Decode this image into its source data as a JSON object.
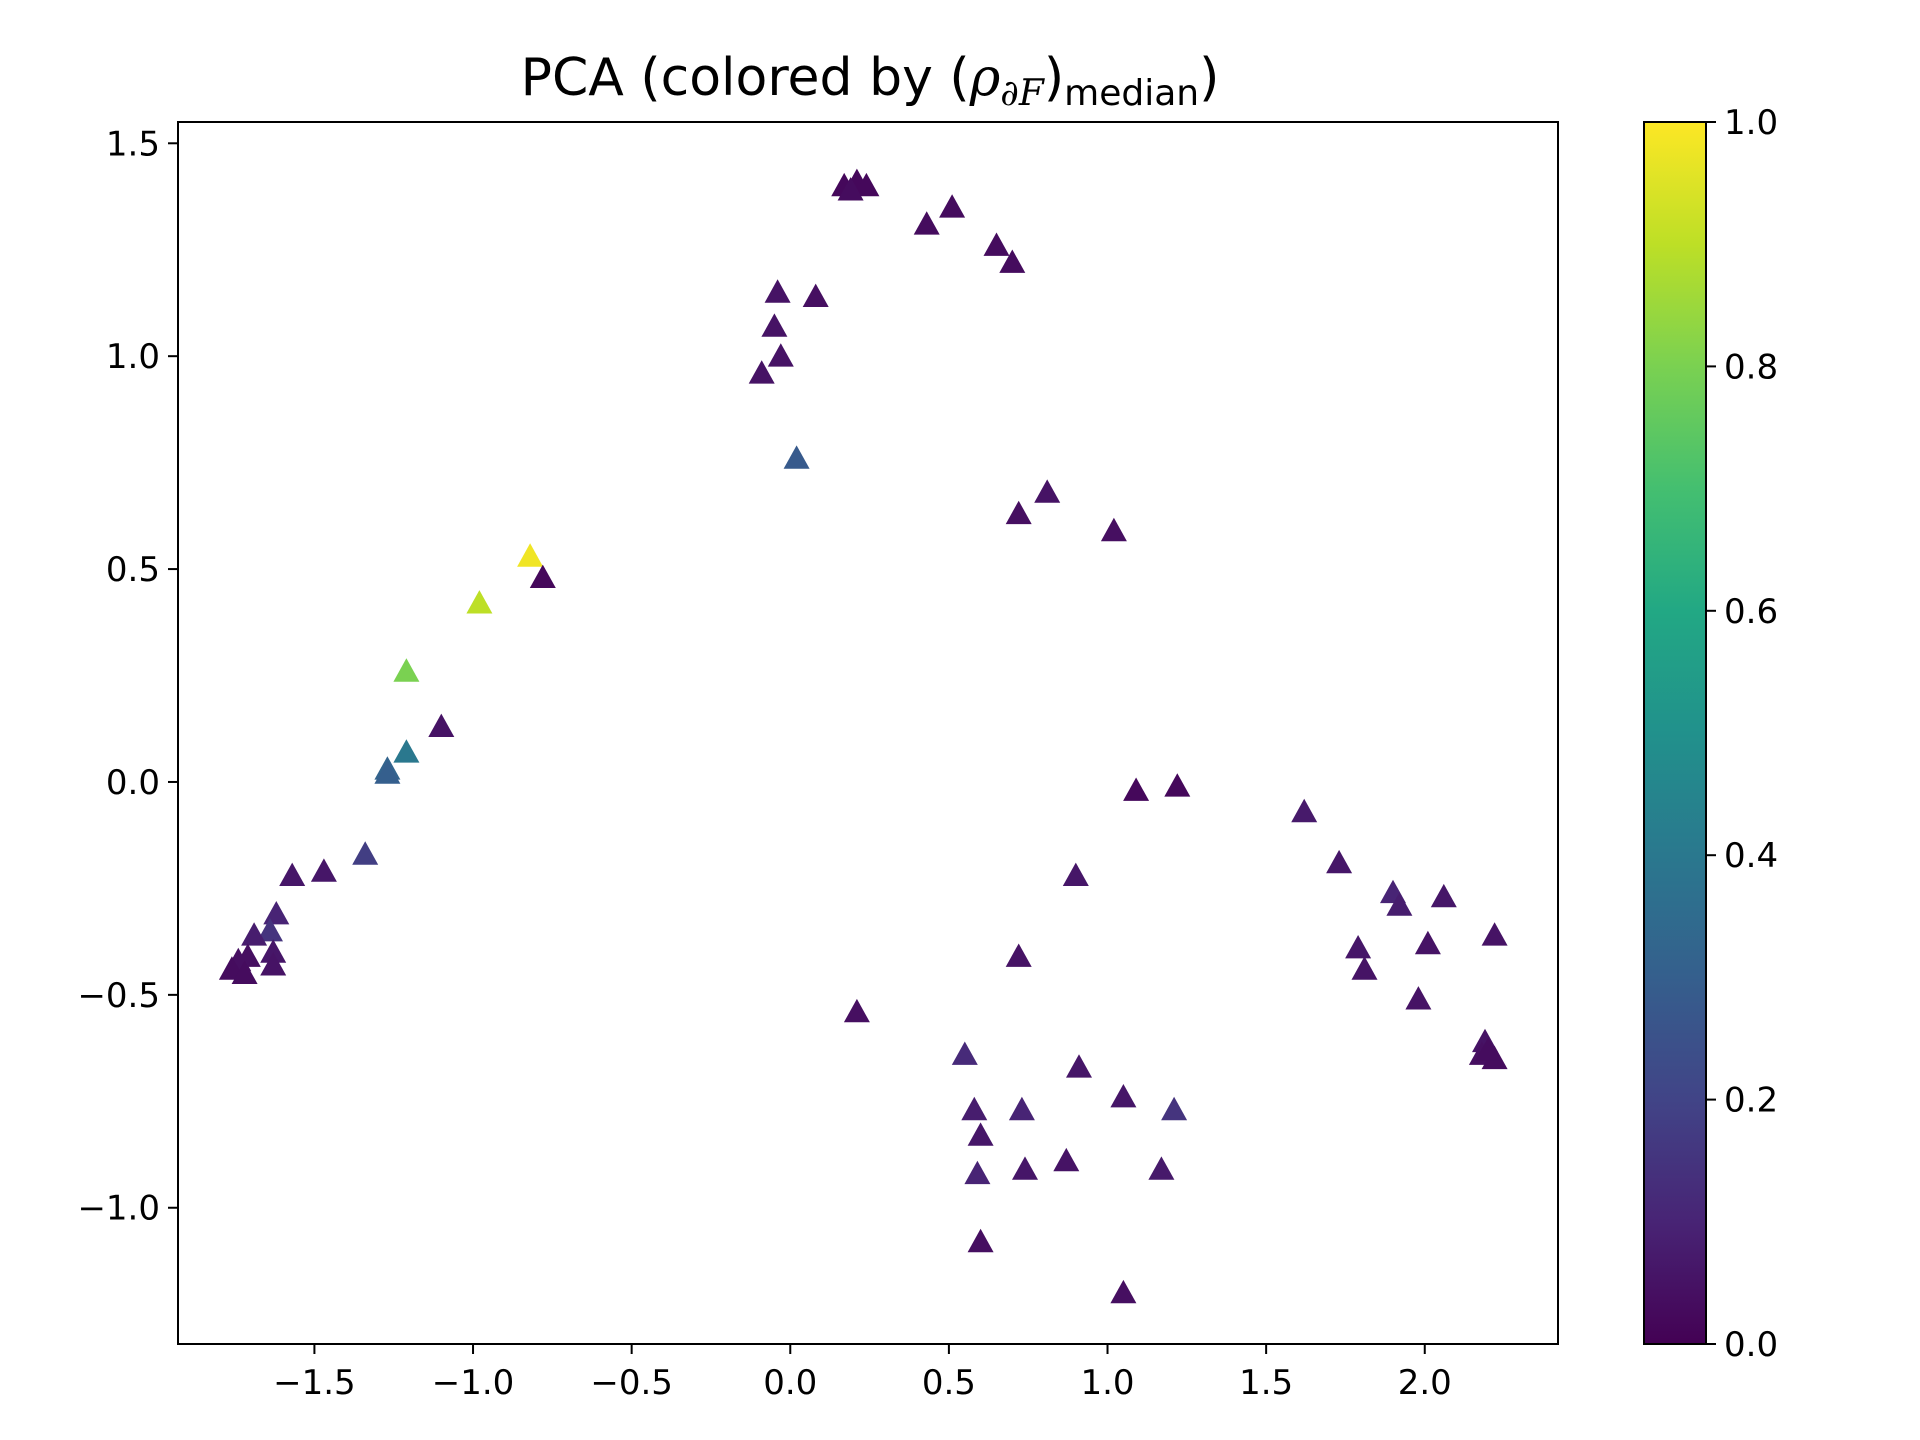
{
  "chart_data": {
    "type": "scatter",
    "title": {
      "prefix": "PCA (colored by (",
      "rho": "ρ",
      "sub": "∂F",
      "close": ")",
      "median": "median",
      "suffix": ")"
    },
    "xlabel": "",
    "ylabel": "",
    "xlim": [
      -1.93,
      2.42
    ],
    "ylim": [
      -1.32,
      1.55
    ],
    "xticks": [
      -1.5,
      -1.0,
      -0.5,
      0.0,
      0.5,
      1.0,
      1.5,
      2.0
    ],
    "xtick_labels": [
      "−1.5",
      "−1.0",
      "−0.5",
      "0.0",
      "0.5",
      "1.0",
      "1.5",
      "2.0"
    ],
    "yticks": [
      -1.0,
      -0.5,
      0.0,
      0.5,
      1.0,
      1.5
    ],
    "ytick_labels": [
      "−1.0",
      "−0.5",
      "0.0",
      "0.5",
      "1.0",
      "1.5"
    ],
    "marker": "triangle",
    "colormap": "viridis",
    "colorbar": {
      "range": [
        0.0,
        1.0
      ],
      "ticks": [
        0.0,
        0.2,
        0.4,
        0.6,
        0.8,
        1.0
      ],
      "tick_labels": [
        "0.0",
        "0.2",
        "0.4",
        "0.6",
        "0.8",
        "1.0"
      ]
    },
    "grid": false,
    "points": [
      {
        "x": 0.17,
        "y": 1.4,
        "c": 0.02
      },
      {
        "x": 0.21,
        "y": 1.41,
        "c": 0.02
      },
      {
        "x": 0.24,
        "y": 1.4,
        "c": 0.02
      },
      {
        "x": 0.19,
        "y": 1.39,
        "c": 0.03
      },
      {
        "x": 0.51,
        "y": 1.35,
        "c": 0.03
      },
      {
        "x": 0.43,
        "y": 1.31,
        "c": 0.03
      },
      {
        "x": 0.65,
        "y": 1.26,
        "c": 0.03
      },
      {
        "x": 0.7,
        "y": 1.22,
        "c": 0.03
      },
      {
        "x": -0.04,
        "y": 1.15,
        "c": 0.05
      },
      {
        "x": 0.08,
        "y": 1.14,
        "c": 0.04
      },
      {
        "x": -0.05,
        "y": 1.07,
        "c": 0.05
      },
      {
        "x": -0.03,
        "y": 1.0,
        "c": 0.05
      },
      {
        "x": -0.09,
        "y": 0.96,
        "c": 0.05
      },
      {
        "x": 0.02,
        "y": 0.76,
        "c": 0.28
      },
      {
        "x": 0.81,
        "y": 0.68,
        "c": 0.05
      },
      {
        "x": 0.72,
        "y": 0.63,
        "c": 0.04
      },
      {
        "x": 1.02,
        "y": 0.59,
        "c": 0.04
      },
      {
        "x": -0.82,
        "y": 0.53,
        "c": 0.98
      },
      {
        "x": -0.78,
        "y": 0.48,
        "c": 0.02
      },
      {
        "x": -0.98,
        "y": 0.42,
        "c": 0.9
      },
      {
        "x": -1.21,
        "y": 0.26,
        "c": 0.8
      },
      {
        "x": -1.1,
        "y": 0.13,
        "c": 0.05
      },
      {
        "x": -1.21,
        "y": 0.07,
        "c": 0.4
      },
      {
        "x": -1.27,
        "y": 0.03,
        "c": 0.32
      },
      {
        "x": -1.27,
        "y": 0.02,
        "c": 0.3
      },
      {
        "x": -1.34,
        "y": -0.17,
        "c": 0.18
      },
      {
        "x": -1.57,
        "y": -0.22,
        "c": 0.06
      },
      {
        "x": -1.47,
        "y": -0.21,
        "c": 0.06
      },
      {
        "x": -1.62,
        "y": -0.31,
        "c": 0.1
      },
      {
        "x": -1.64,
        "y": -0.35,
        "c": 0.15
      },
      {
        "x": -1.69,
        "y": -0.36,
        "c": 0.08
      },
      {
        "x": -1.63,
        "y": -0.4,
        "c": 0.06
      },
      {
        "x": -1.71,
        "y": -0.41,
        "c": 0.04
      },
      {
        "x": -1.74,
        "y": -0.42,
        "c": 0.04
      },
      {
        "x": -1.63,
        "y": -0.43,
        "c": 0.05
      },
      {
        "x": -1.76,
        "y": -0.44,
        "c": 0.03
      },
      {
        "x": -1.72,
        "y": -0.45,
        "c": 0.03
      },
      {
        "x": 1.09,
        "y": -0.02,
        "c": 0.02
      },
      {
        "x": 1.22,
        "y": -0.01,
        "c": 0.02
      },
      {
        "x": 0.9,
        "y": -0.22,
        "c": 0.06
      },
      {
        "x": 0.72,
        "y": -0.41,
        "c": 0.05
      },
      {
        "x": 0.21,
        "y": -0.54,
        "c": 0.04
      },
      {
        "x": 1.62,
        "y": -0.07,
        "c": 0.07
      },
      {
        "x": 1.73,
        "y": -0.19,
        "c": 0.06
      },
      {
        "x": 1.9,
        "y": -0.26,
        "c": 0.1
      },
      {
        "x": 1.92,
        "y": -0.29,
        "c": 0.08
      },
      {
        "x": 2.06,
        "y": -0.27,
        "c": 0.06
      },
      {
        "x": 2.22,
        "y": -0.36,
        "c": 0.05
      },
      {
        "x": 1.79,
        "y": -0.39,
        "c": 0.06
      },
      {
        "x": 2.01,
        "y": -0.38,
        "c": 0.05
      },
      {
        "x": 1.81,
        "y": -0.44,
        "c": 0.05
      },
      {
        "x": 1.98,
        "y": -0.51,
        "c": 0.05
      },
      {
        "x": 2.19,
        "y": -0.61,
        "c": 0.05
      },
      {
        "x": 2.18,
        "y": -0.64,
        "c": 0.04
      },
      {
        "x": 2.22,
        "y": -0.65,
        "c": 0.03
      },
      {
        "x": 2.2,
        "y": -0.63,
        "c": 0.03
      },
      {
        "x": 0.55,
        "y": -0.64,
        "c": 0.12
      },
      {
        "x": 0.91,
        "y": -0.67,
        "c": 0.06
      },
      {
        "x": 1.05,
        "y": -0.74,
        "c": 0.06
      },
      {
        "x": 1.21,
        "y": -0.77,
        "c": 0.15
      },
      {
        "x": 0.58,
        "y": -0.77,
        "c": 0.08
      },
      {
        "x": 0.73,
        "y": -0.77,
        "c": 0.1
      },
      {
        "x": 0.6,
        "y": -0.83,
        "c": 0.06
      },
      {
        "x": 0.87,
        "y": -0.89,
        "c": 0.05
      },
      {
        "x": 0.59,
        "y": -0.92,
        "c": 0.1
      },
      {
        "x": 0.74,
        "y": -0.91,
        "c": 0.06
      },
      {
        "x": 1.17,
        "y": -0.91,
        "c": 0.07
      },
      {
        "x": 0.6,
        "y": -1.08,
        "c": 0.04
      },
      {
        "x": 1.05,
        "y": -1.2,
        "c": 0.04
      }
    ]
  }
}
